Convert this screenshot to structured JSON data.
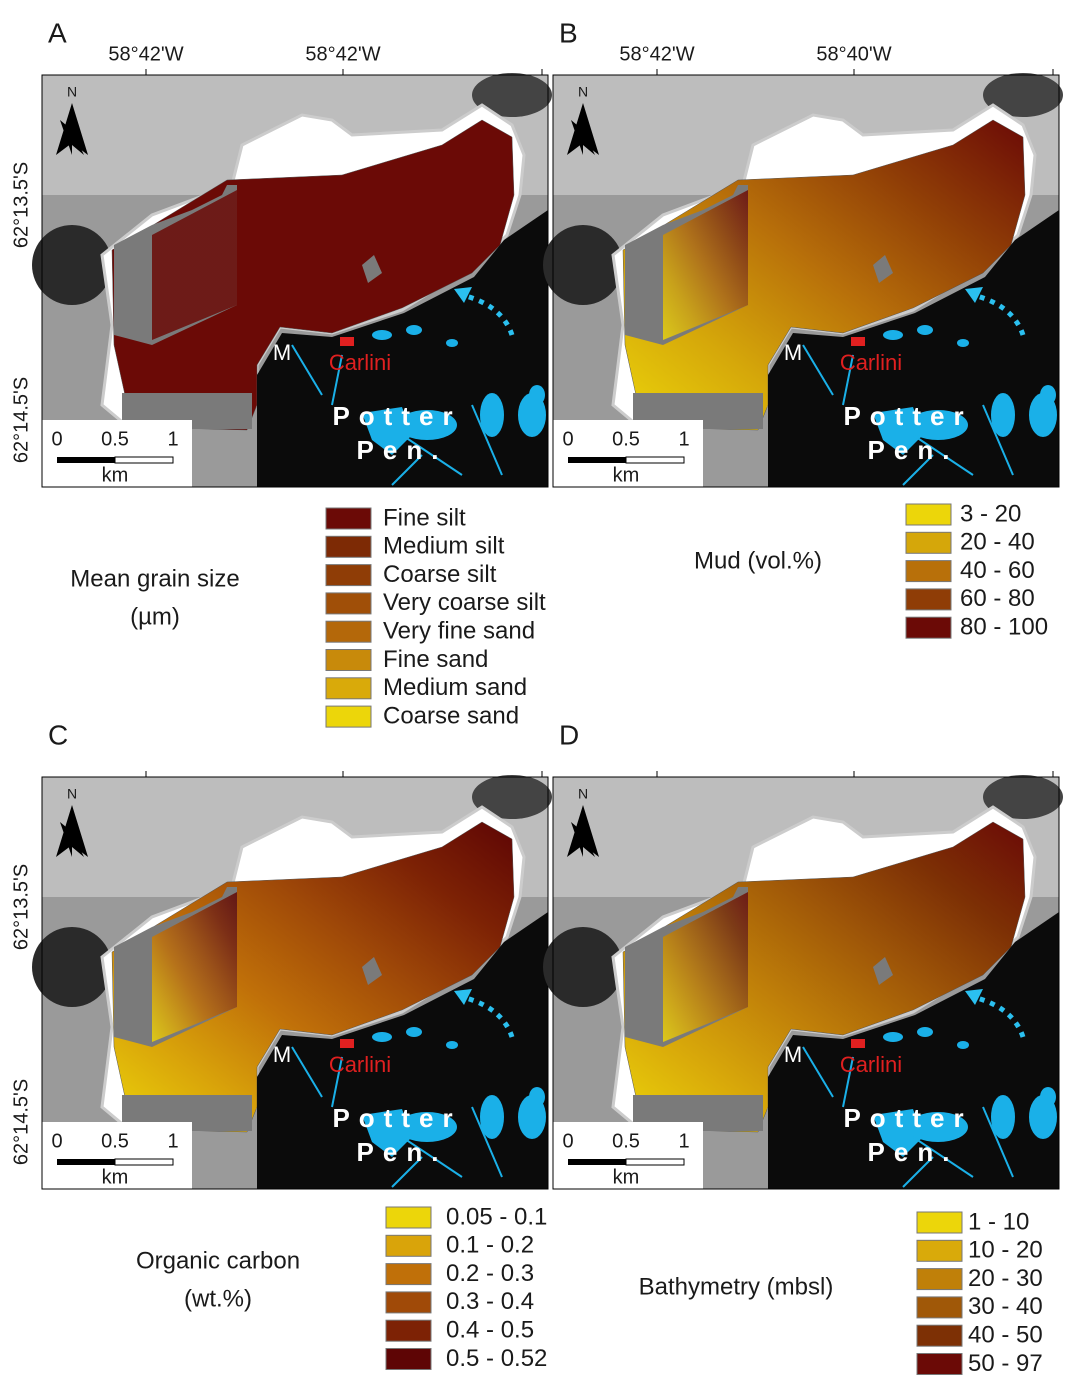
{
  "map_labels": {
    "north": "N",
    "m": "M",
    "station": "Carlini",
    "place_1": "Potter",
    "place_2": "Pen.",
    "scale_0": "0",
    "scale_1": "0.5",
    "scale_2": "1",
    "scale_unit": "km"
  },
  "panels": [
    {
      "label": "A",
      "lon_labels": [
        "58°42'W",
        "58°42'W"
      ],
      "lat_labels": [
        "62°13.5'S",
        "62°14.5'S"
      ],
      "legend": {
        "title": [
          "Mean grain size",
          "(µm)"
        ],
        "items": [
          {
            "label": "Fine silt",
            "color": "#6b0a06"
          },
          {
            "label": "Medium silt",
            "color": "#7d2a05"
          },
          {
            "label": "Coarse silt",
            "color": "#8f3d06"
          },
          {
            "label": "Very coarse silt",
            "color": "#a04f08"
          },
          {
            "label": "Very fine sand",
            "color": "#b4680a"
          },
          {
            "label": "Fine sand",
            "color": "#c88a0b"
          },
          {
            "label": "Medium sand",
            "color": "#d9aa0a"
          },
          {
            "label": "Coarse sand",
            "color": "#ecd60a"
          }
        ]
      }
    },
    {
      "label": "B",
      "lon_labels": [
        "58°42'W",
        "58°40'W"
      ],
      "lat_labels": [],
      "legend": {
        "title": [
          "Mud (vol.%)"
        ],
        "items": [
          {
            "label": "3 - 20",
            "color": "#ecd60a"
          },
          {
            "label": "20 - 40",
            "color": "#d5a70a"
          },
          {
            "label": "40 - 60",
            "color": "#b8700a"
          },
          {
            "label": "60 - 80",
            "color": "#8f3d06"
          },
          {
            "label": "80 - 100",
            "color": "#6b0a06"
          }
        ]
      }
    },
    {
      "label": "C",
      "lon_labels": [],
      "lat_labels": [
        "62°13.5'S",
        "62°14.5'S"
      ],
      "legend": {
        "title": [
          "Organic carbon",
          "(wt.%)"
        ],
        "items": [
          {
            "label": "0.05 - 0.1",
            "color": "#ecd60a"
          },
          {
            "label": "0.1 - 0.2",
            "color": "#d9a40a"
          },
          {
            "label": "0.2 - 0.3",
            "color": "#c07009"
          },
          {
            "label": "0.3 - 0.4",
            "color": "#a04a08"
          },
          {
            "label": "0.4 - 0.5",
            "color": "#7d2205"
          },
          {
            "label": "0.5 - 0.52",
            "color": "#5e0505"
          }
        ]
      }
    },
    {
      "label": "D",
      "lon_labels": [],
      "lat_labels": [],
      "legend": {
        "title": [
          "Bathymetry (mbsl)"
        ],
        "items": [
          {
            "label": "1 - 10",
            "color": "#ecd60a"
          },
          {
            "label": "10 - 20",
            "color": "#d9aa0a"
          },
          {
            "label": "20 - 30",
            "color": "#c08009"
          },
          {
            "label": "30 - 40",
            "color": "#a05808"
          },
          {
            "label": "40 - 50",
            "color": "#7d3005"
          },
          {
            "label": "50 - 97",
            "color": "#6b0a06"
          }
        ]
      }
    }
  ]
}
